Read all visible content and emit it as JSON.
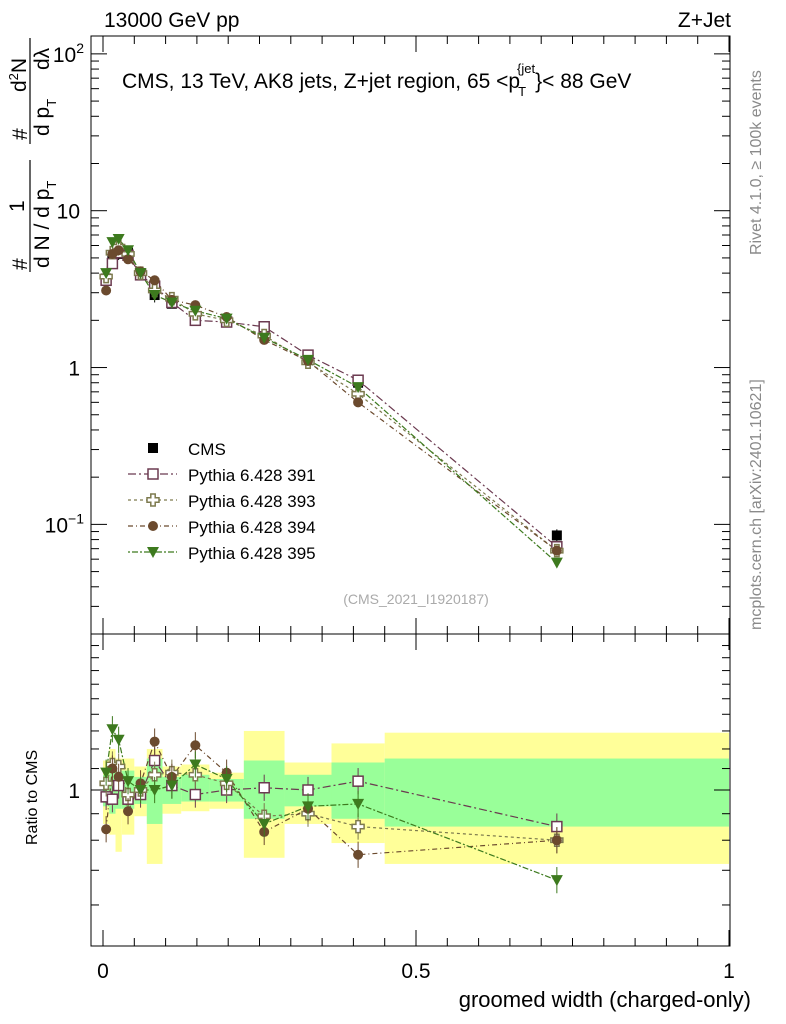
{
  "header": {
    "left": "13000 GeV pp",
    "right": "Z+Jet"
  },
  "side": {
    "rivet": "Rivet 4.1.0, ≥ 100k events",
    "mcplots": "mcplots.cern.ch [arXiv:2401.10621]"
  },
  "plot_title": {
    "main": "CMS, 13 TeV, AK8 jets, Z+jet region, 65 <p",
    "sub": "T",
    "sup": "{jet",
    "tail": "}< 88 GeV"
  },
  "watermark": "(CMS_2021_I1920187)",
  "ylabel_top": {
    "hash1": "#",
    "one": "1",
    "dN": "d N / d p",
    "dN_sub": "T",
    "hash2": "#",
    "d2N": "d",
    "d2N_sup": "2",
    "d2N_rest": "N",
    "dp": "d p",
    "dp_sub": "T",
    "dlambda": "dλ"
  },
  "ylabel_ratio": "Ratio to CMS",
  "xlabel": "groomed width (charged-only)",
  "colors": {
    "cms": "#000000",
    "p391": "#6b3a50",
    "p393": "#7d7a4e",
    "p394": "#6b4a2e",
    "p395": "#3d7a1e",
    "band_inner": "#99ff99",
    "band_outer": "#ffff99"
  },
  "chart_data": {
    "type": "scatter",
    "xlabel": "groomed width (charged-only)",
    "ylabel": "1/dN/dpT d2N/dpT dlambda",
    "x_range": [
      -0.02,
      1.0
    ],
    "y_range_log": [
      0.02,
      130
    ],
    "ratio_range": [
      0.5,
      2.0
    ],
    "x_ticks": [
      {
        "value": 0,
        "label": "0"
      },
      {
        "value": 0.5,
        "label": "0.5"
      },
      {
        "value": 1,
        "label": "1"
      }
    ],
    "y_ticks": [
      {
        "value": 0.1,
        "label": "10",
        "sup": "−1"
      },
      {
        "value": 1,
        "label": "1",
        "sup": ""
      },
      {
        "value": 10,
        "label": "10",
        "sup": ""
      },
      {
        "value": 100,
        "label": "10",
        "sup": "2"
      }
    ],
    "ratio_ticks": [
      {
        "value": 1,
        "label": "1"
      }
    ],
    "bins": [
      {
        "lo": 0.0,
        "hi": 0.01,
        "inner": [
          0.93,
          1.07
        ],
        "outer": [
          0.86,
          1.14
        ]
      },
      {
        "lo": 0.01,
        "hi": 0.02,
        "inner": [
          0.9,
          1.1
        ],
        "outer": [
          0.82,
          1.2
        ]
      },
      {
        "lo": 0.02,
        "hi": 0.03,
        "inner": [
          0.92,
          1.08
        ],
        "outer": [
          0.76,
          1.15
        ]
      },
      {
        "lo": 0.03,
        "hi": 0.05,
        "inner": [
          0.92,
          1.09
        ],
        "outer": [
          0.82,
          1.15
        ]
      },
      {
        "lo": 0.05,
        "hi": 0.07,
        "inner": [
          0.94,
          1.06
        ],
        "outer": [
          0.89,
          1.11
        ]
      },
      {
        "lo": 0.07,
        "hi": 0.095,
        "inner": [
          0.86,
          1.15
        ],
        "outer": [
          0.72,
          1.2
        ]
      },
      {
        "lo": 0.095,
        "hi": 0.125,
        "inner": [
          0.94,
          1.06
        ],
        "outer": [
          0.9,
          1.11
        ]
      },
      {
        "lo": 0.125,
        "hi": 0.17,
        "inner": [
          0.95,
          1.07
        ],
        "outer": [
          0.91,
          1.12
        ]
      },
      {
        "lo": 0.17,
        "hi": 0.225,
        "inner": [
          0.95,
          1.05
        ],
        "outer": [
          0.92,
          1.08
        ]
      },
      {
        "lo": 0.225,
        "hi": 0.29,
        "inner": [
          0.88,
          1.14
        ],
        "outer": [
          0.74,
          1.3
        ]
      },
      {
        "lo": 0.29,
        "hi": 0.365,
        "inner": [
          0.93,
          1.07
        ],
        "outer": [
          0.86,
          1.13
        ]
      },
      {
        "lo": 0.365,
        "hi": 0.45,
        "inner": [
          0.88,
          1.13
        ],
        "outer": [
          0.79,
          1.23
        ]
      },
      {
        "lo": 0.45,
        "hi": 1.0,
        "inner": [
          0.85,
          1.15
        ],
        "outer": [
          0.72,
          1.29
        ]
      }
    ],
    "series": [
      {
        "name": "CMS",
        "marker": "square-filled",
        "color_key": "cms",
        "dash": "",
        "points": [
          {
            "x": 0.005,
            "y": 3.7,
            "err": 0.25
          },
          {
            "x": 0.015,
            "y": 4.8,
            "err": 0.35
          },
          {
            "x": 0.025,
            "y": 5.3,
            "err": 0.45
          },
          {
            "x": 0.04,
            "y": 5.4,
            "err": 0.35
          },
          {
            "x": 0.06,
            "y": 4.0,
            "err": 0.2
          },
          {
            "x": 0.0825,
            "y": 2.9,
            "err": 0.3
          },
          {
            "x": 0.11,
            "y": 2.55,
            "err": 0.12
          },
          {
            "x": 0.1475,
            "y": 2.05,
            "err": 0.1
          },
          {
            "x": 0.1975,
            "y": 1.95,
            "err": 0.08
          },
          {
            "x": 0.2575,
            "y": 1.8,
            "err": 0.18
          },
          {
            "x": 0.3275,
            "y": 1.2,
            "err": 0.06
          },
          {
            "x": 0.4075,
            "y": 0.8,
            "err": 0.06
          },
          {
            "x": 0.725,
            "y": 0.085,
            "err": 0.008
          }
        ]
      },
      {
        "name": "Pythia 6.428 391",
        "marker": "square-open",
        "color_key": "p391",
        "dash": "8,3,2,3",
        "points": [
          {
            "x": 0.005,
            "y": 3.6,
            "ratio": 0.97
          },
          {
            "x": 0.015,
            "y": 4.6,
            "ratio": 0.96
          },
          {
            "x": 0.025,
            "y": 5.4,
            "ratio": 1.02
          },
          {
            "x": 0.04,
            "y": 5.2,
            "ratio": 0.96
          },
          {
            "x": 0.06,
            "y": 3.9,
            "ratio": 0.98
          },
          {
            "x": 0.0825,
            "y": 3.3,
            "ratio": 1.14
          },
          {
            "x": 0.11,
            "y": 2.6,
            "ratio": 1.02
          },
          {
            "x": 0.1475,
            "y": 2.0,
            "ratio": 0.98
          },
          {
            "x": 0.1975,
            "y": 1.95,
            "ratio": 1.0
          },
          {
            "x": 0.2575,
            "y": 1.82,
            "ratio": 1.01
          },
          {
            "x": 0.3275,
            "y": 1.2,
            "ratio": 1.0
          },
          {
            "x": 0.4075,
            "y": 0.83,
            "ratio": 1.04
          },
          {
            "x": 0.725,
            "y": 0.072,
            "ratio": 0.85
          }
        ]
      },
      {
        "name": "Pythia 6.428 393",
        "marker": "cross-open",
        "color_key": "p393",
        "dash": "3,3",
        "points": [
          {
            "x": 0.005,
            "y": 3.8,
            "ratio": 1.03
          },
          {
            "x": 0.015,
            "y": 5.4,
            "ratio": 1.12
          },
          {
            "x": 0.025,
            "y": 5.9,
            "ratio": 1.11
          },
          {
            "x": 0.04,
            "y": 5.3,
            "ratio": 0.98
          },
          {
            "x": 0.06,
            "y": 4.0,
            "ratio": 1.0
          },
          {
            "x": 0.0825,
            "y": 3.1,
            "ratio": 1.07
          },
          {
            "x": 0.11,
            "y": 2.75,
            "ratio": 1.08
          },
          {
            "x": 0.1475,
            "y": 2.2,
            "ratio": 1.07
          },
          {
            "x": 0.1975,
            "y": 2.0,
            "ratio": 1.03
          },
          {
            "x": 0.2575,
            "y": 1.6,
            "ratio": 0.89
          },
          {
            "x": 0.3275,
            "y": 1.08,
            "ratio": 0.9
          },
          {
            "x": 0.4075,
            "y": 0.68,
            "ratio": 0.85
          },
          {
            "x": 0.725,
            "y": 0.068,
            "ratio": 0.8
          }
        ]
      },
      {
        "name": "Pythia 6.428 394",
        "marker": "circle-filled",
        "color_key": "p394",
        "dash": "5,3,1,3",
        "points": [
          {
            "x": 0.005,
            "y": 3.1,
            "ratio": 0.84
          },
          {
            "x": 0.015,
            "y": 5.3,
            "ratio": 1.1
          },
          {
            "x": 0.025,
            "y": 5.6,
            "ratio": 1.06
          },
          {
            "x": 0.04,
            "y": 4.9,
            "ratio": 0.91
          },
          {
            "x": 0.06,
            "y": 4.1,
            "ratio": 1.03
          },
          {
            "x": 0.0825,
            "y": 3.6,
            "ratio": 1.24
          },
          {
            "x": 0.11,
            "y": 2.7,
            "ratio": 1.06
          },
          {
            "x": 0.1475,
            "y": 2.5,
            "ratio": 1.22
          },
          {
            "x": 0.1975,
            "y": 2.1,
            "ratio": 1.08
          },
          {
            "x": 0.2575,
            "y": 1.5,
            "ratio": 0.83
          },
          {
            "x": 0.3275,
            "y": 1.1,
            "ratio": 0.92
          },
          {
            "x": 0.4075,
            "y": 0.6,
            "ratio": 0.75
          },
          {
            "x": 0.725,
            "y": 0.068,
            "ratio": 0.8
          }
        ]
      },
      {
        "name": "Pythia 6.428 395",
        "marker": "triangle-down-filled",
        "color_key": "p395",
        "dash": "2,2,6,2",
        "points": [
          {
            "x": 0.005,
            "y": 4.0,
            "ratio": 1.08
          },
          {
            "x": 0.015,
            "y": 6.3,
            "ratio": 1.31
          },
          {
            "x": 0.025,
            "y": 6.6,
            "ratio": 1.25
          },
          {
            "x": 0.04,
            "y": 5.6,
            "ratio": 1.04
          },
          {
            "x": 0.06,
            "y": 4.0,
            "ratio": 1.0
          },
          {
            "x": 0.0825,
            "y": 2.9,
            "ratio": 1.0
          },
          {
            "x": 0.11,
            "y": 2.6,
            "ratio": 1.02
          },
          {
            "x": 0.1475,
            "y": 2.3,
            "ratio": 1.12
          },
          {
            "x": 0.1975,
            "y": 2.05,
            "ratio": 1.05
          },
          {
            "x": 0.2575,
            "y": 1.55,
            "ratio": 0.86
          },
          {
            "x": 0.3275,
            "y": 1.12,
            "ratio": 0.93
          },
          {
            "x": 0.4075,
            "y": 0.75,
            "ratio": 0.94
          },
          {
            "x": 0.725,
            "y": 0.057,
            "ratio": 0.67
          }
        ]
      }
    ]
  }
}
